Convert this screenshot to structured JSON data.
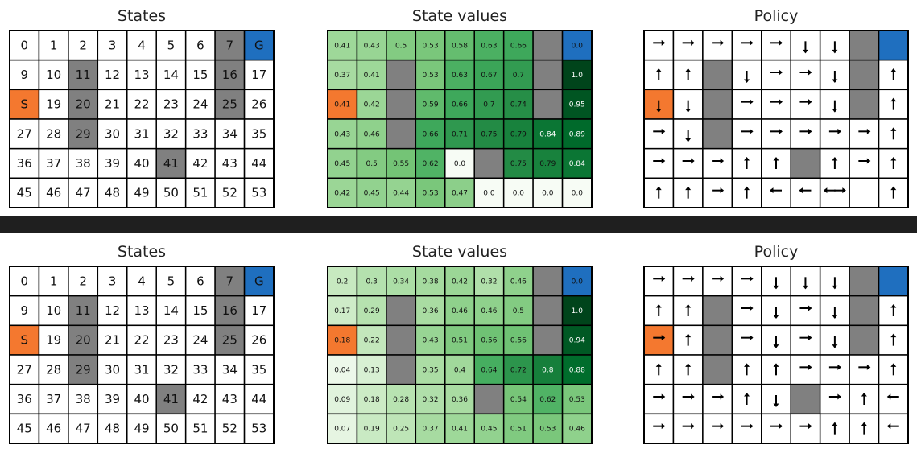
{
  "colors": {
    "wall": "#808080",
    "start": "#f4782f",
    "goal": "#1f6fbf",
    "separator": "#1f1f1f",
    "cell": "#ffffff",
    "grid_line": "#000000"
  },
  "panels": [
    {
      "states_title": "States",
      "values_title": "State values",
      "policy_title": "Policy",
      "state_labels": [
        [
          "0",
          "1",
          "2",
          "3",
          "4",
          "5",
          "6",
          "7",
          "G"
        ],
        [
          "9",
          "10",
          "11",
          "12",
          "13",
          "14",
          "15",
          "16",
          "17"
        ],
        [
          "S",
          "19",
          "20",
          "21",
          "22",
          "23",
          "24",
          "25",
          "26"
        ],
        [
          "27",
          "28",
          "29",
          "30",
          "31",
          "32",
          "33",
          "34",
          "35"
        ],
        [
          "36",
          "37",
          "38",
          "39",
          "40",
          "41",
          "42",
          "43",
          "44"
        ],
        [
          "45",
          "46",
          "47",
          "48",
          "49",
          "50",
          "51",
          "52",
          "53"
        ]
      ],
      "values": [
        [
          "0.41",
          "0.43",
          "0.5",
          "0.53",
          "0.58",
          "0.63",
          "0.66",
          "",
          "0.0"
        ],
        [
          "0.37",
          "0.41",
          "",
          "0.53",
          "0.63",
          "0.67",
          "0.7",
          "",
          "1.0"
        ],
        [
          "0.41",
          "0.42",
          "",
          "0.59",
          "0.66",
          "0.7",
          "0.74",
          "",
          "0.95"
        ],
        [
          "0.43",
          "0.46",
          "",
          "0.66",
          "0.71",
          "0.75",
          "0.79",
          "0.84",
          "0.89"
        ],
        [
          "0.45",
          "0.5",
          "0.55",
          "0.62",
          "0.0",
          "",
          "0.75",
          "0.79",
          "0.84"
        ],
        [
          "0.42",
          "0.45",
          "0.44",
          "0.53",
          "0.47",
          "0.0",
          "0.0",
          "0.0",
          "0.0"
        ]
      ],
      "policy": [
        [
          "R",
          "R",
          "R",
          "R",
          "R",
          "D",
          "D",
          "W",
          "G"
        ],
        [
          "U",
          "U",
          "W",
          "D",
          "R",
          "R",
          "D",
          "W",
          "U"
        ],
        [
          "D",
          "D",
          "W",
          "R",
          "R",
          "R",
          "D",
          "W",
          "U"
        ],
        [
          "R",
          "D",
          "W",
          "R",
          "R",
          "R",
          "R",
          "R",
          "U"
        ],
        [
          "R",
          "R",
          "R",
          "U",
          "U",
          "W",
          "U",
          "R",
          "U"
        ],
        [
          "U",
          "U",
          "R",
          "U",
          "L",
          "L",
          "RL",
          "",
          "U"
        ]
      ]
    },
    {
      "states_title": "States",
      "values_title": "State values",
      "policy_title": "Policy",
      "state_labels": [
        [
          "0",
          "1",
          "2",
          "3",
          "4",
          "5",
          "6",
          "7",
          "G"
        ],
        [
          "9",
          "10",
          "11",
          "12",
          "13",
          "14",
          "15",
          "16",
          "17"
        ],
        [
          "S",
          "19",
          "20",
          "21",
          "22",
          "23",
          "24",
          "25",
          "26"
        ],
        [
          "27",
          "28",
          "29",
          "30",
          "31",
          "32",
          "33",
          "34",
          "35"
        ],
        [
          "36",
          "37",
          "38",
          "39",
          "40",
          "41",
          "42",
          "43",
          "44"
        ],
        [
          "45",
          "46",
          "47",
          "48",
          "49",
          "50",
          "51",
          "52",
          "53"
        ]
      ],
      "values": [
        [
          "0.2",
          "0.3",
          "0.34",
          "0.38",
          "0.42",
          "0.32",
          "0.46",
          "",
          "0.0"
        ],
        [
          "0.17",
          "0.29",
          "",
          "0.36",
          "0.46",
          "0.46",
          "0.5",
          "",
          "1.0"
        ],
        [
          "0.18",
          "0.22",
          "",
          "0.43",
          "0.51",
          "0.56",
          "0.56",
          "",
          "0.94"
        ],
        [
          "0.04",
          "0.13",
          "",
          "0.35",
          "0.4",
          "0.64",
          "0.72",
          "0.8",
          "0.88"
        ],
        [
          "0.09",
          "0.18",
          "0.28",
          "0.32",
          "0.36",
          "",
          "0.54",
          "0.62",
          "0.53"
        ],
        [
          "0.07",
          "0.19",
          "0.25",
          "0.37",
          "0.41",
          "0.45",
          "0.51",
          "0.53",
          "0.46"
        ]
      ],
      "policy": [
        [
          "R",
          "R",
          "R",
          "R",
          "D",
          "D",
          "D",
          "W",
          "G"
        ],
        [
          "U",
          "U",
          "W",
          "R",
          "D",
          "R",
          "D",
          "W",
          "U"
        ],
        [
          "R",
          "U",
          "W",
          "R",
          "D",
          "R",
          "D",
          "W",
          "U"
        ],
        [
          "U",
          "U",
          "W",
          "U",
          "U",
          "R",
          "R",
          "R",
          "U"
        ],
        [
          "R",
          "R",
          "R",
          "U",
          "D",
          "W",
          "R",
          "U",
          "L"
        ],
        [
          "R",
          "R",
          "R",
          "R",
          "R",
          "R",
          "U",
          "U",
          "L"
        ]
      ]
    }
  ]
}
